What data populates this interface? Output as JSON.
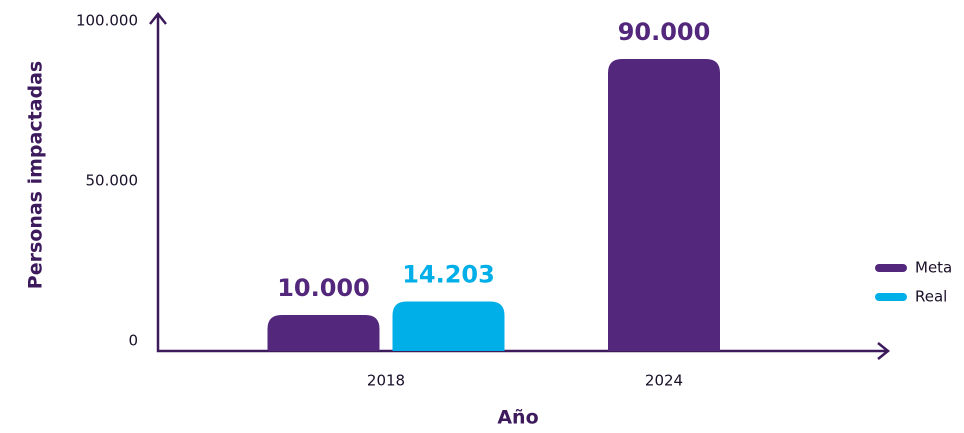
{
  "chart_data": {
    "type": "bar",
    "x_label": "Año",
    "y_label": "Personas impactadas",
    "categories": [
      "2018",
      "2024"
    ],
    "series": [
      {
        "name": "Meta",
        "color": "#52277c",
        "values": [
          10000,
          90000
        ],
        "value_labels": [
          "10.000",
          "90.000"
        ]
      },
      {
        "name": "Real",
        "color": "#00aee8",
        "values": [
          14203,
          null
        ],
        "value_labels": [
          "14.203",
          null
        ]
      }
    ],
    "ylim": [
      0,
      100000
    ],
    "yticks": [
      0,
      {
        "value": 50000,
        "label": "50.000"
      },
      {
        "value": 100000,
        "label": "100.000"
      }
    ],
    "legend": "right"
  }
}
